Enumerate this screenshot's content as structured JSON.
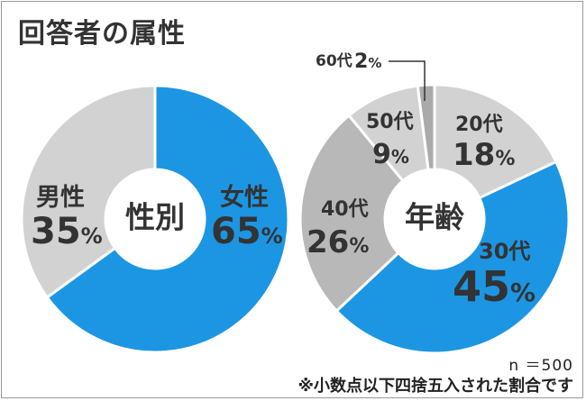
{
  "title": "回答者の属性",
  "colors": {
    "blue": "#1c96e3",
    "gray_light": "#d2d2d2",
    "gray_mid": "#b8b8b8",
    "gray_dark": "#aaaaaa",
    "text": "#333333"
  },
  "chart_data": [
    {
      "type": "pie",
      "center_label": "性別",
      "start": "12 o'clock, clockwise",
      "slices": [
        {
          "label": "女性",
          "value": 65,
          "display": "65",
          "unit": "%",
          "color": "#1c96e3"
        },
        {
          "label": "男性",
          "value": 35,
          "display": "35",
          "unit": "%",
          "color": "#d2d2d2"
        }
      ]
    },
    {
      "type": "pie",
      "center_label": "年齢",
      "start": "12 o'clock, clockwise",
      "slices": [
        {
          "label": "20代",
          "value": 18,
          "display": "18",
          "unit": "%",
          "color": "#d2d2d2"
        },
        {
          "label": "30代",
          "value": 45,
          "display": "45",
          "unit": "%",
          "color": "#1c96e3"
        },
        {
          "label": "40代",
          "value": 26,
          "display": "26",
          "unit": "%",
          "color": "#b8b8b8"
        },
        {
          "label": "50代",
          "value": 9,
          "display": "9",
          "unit": "%",
          "color": "#d2d2d2"
        },
        {
          "label": "60代",
          "value": 2,
          "display": "2",
          "unit": "%",
          "color": "#aaaaaa"
        }
      ]
    }
  ],
  "footer": {
    "sample": "n ＝500",
    "note": "※小数点以下四捨五入された割合です"
  }
}
